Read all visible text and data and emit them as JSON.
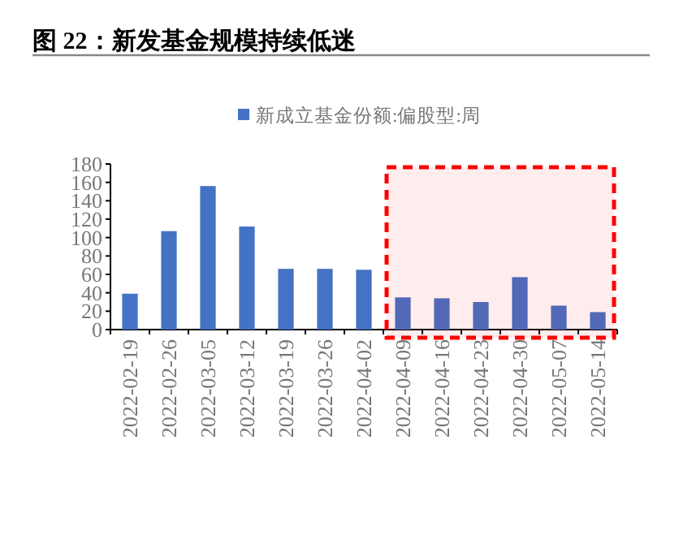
{
  "chart_data": {
    "type": "bar",
    "title": "图  22：新发基金规模持续低迷",
    "categories": [
      "2022-02-19",
      "2022-02-26",
      "2022-03-05",
      "2022-03-12",
      "2022-03-19",
      "2022-03-26",
      "2022-04-02",
      "2022-04-09",
      "2022-04-16",
      "2022-04-23",
      "2022-04-30",
      "2022-05-07",
      "2022-05-14"
    ],
    "series": [
      {
        "name": "新成立基金份额:偏股型:周",
        "color": "#4472c4",
        "values": [
          39,
          107,
          156,
          112,
          66,
          66,
          65,
          35,
          34,
          30,
          57,
          26,
          19
        ]
      }
    ],
    "ylim": [
      0,
      180
    ],
    "yticks": [
      0,
      20,
      40,
      60,
      80,
      100,
      120,
      140,
      160,
      180
    ],
    "legend": "top",
    "bands": [
      {
        "axis": "x",
        "from": "2022-04-09",
        "to": "2022-05-14",
        "color": "#ff0000"
      }
    ]
  }
}
